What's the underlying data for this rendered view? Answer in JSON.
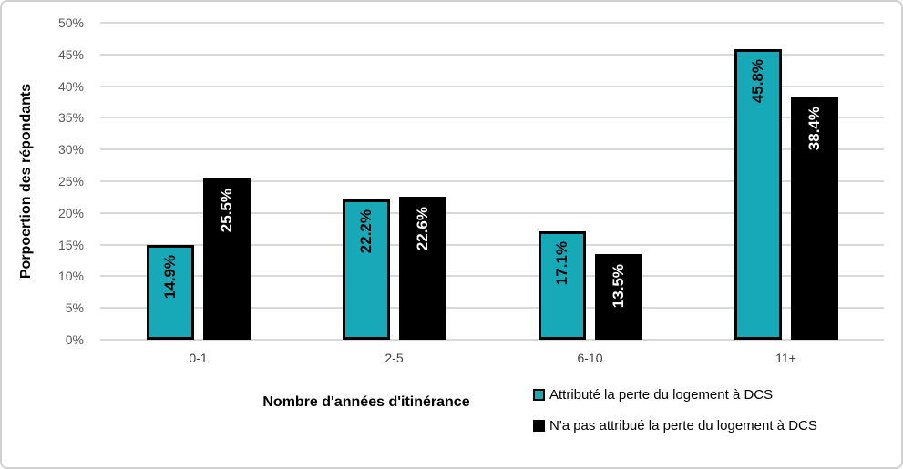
{
  "colors": {
    "teal": "#18a9b8",
    "black": "#000000",
    "white": "#ffffff",
    "gridline": "#d9d9d9",
    "y_tick_label": "#595959",
    "category_label": "#404040",
    "frame_border": "#d2d2d2"
  },
  "chart_data": {
    "type": "bar",
    "title": "",
    "xlabel": "Nombre d'années d'itinérance",
    "ylabel": "Porpoertion des répondants",
    "categories": [
      "0-1",
      "2-5",
      "6-10",
      "11+"
    ],
    "series": [
      {
        "name": "Attributé la perte du logement à DCS",
        "color": "#18a9b8",
        "label_color": "#000000",
        "values": [
          14.9,
          22.2,
          17.1,
          45.8
        ]
      },
      {
        "name": "N'a pas attribué la perte du logement à DCS",
        "color": "#000000",
        "label_color": "#ffffff",
        "values": [
          25.5,
          22.6,
          13.5,
          38.4
        ]
      }
    ],
    "value_labels": [
      [
        "14.9%",
        "22.2%",
        "17.1%",
        "45.8%"
      ],
      [
        "25.5%",
        "22.6%",
        "13.5%",
        "38.4%"
      ]
    ],
    "ylim": [
      0,
      50
    ],
    "ytick_step": 5,
    "ytick_labels": [
      "0%",
      "5%",
      "10%",
      "15%",
      "20%",
      "25%",
      "30%",
      "35%",
      "40%",
      "45%",
      "50%"
    ],
    "grid": true,
    "legend_position": "bottom-right"
  }
}
